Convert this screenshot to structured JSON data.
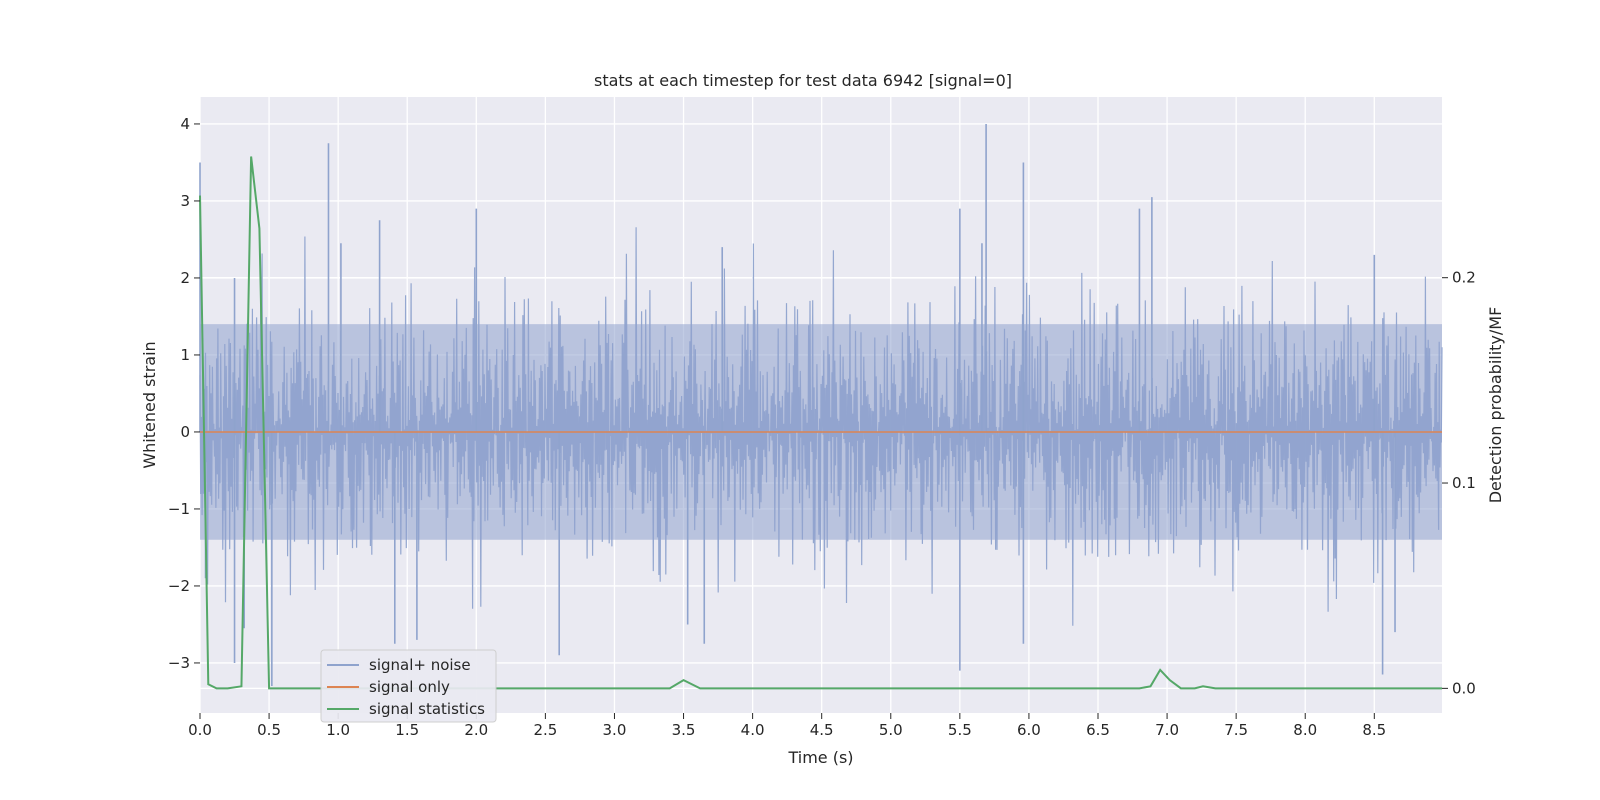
{
  "chart_data": {
    "type": "line",
    "title": "stats at each timestep for test data 6942 [signal=0]",
    "xlabel": "Time (s)",
    "ylabel": "Whitened strain",
    "y2label": "Detection probability/MF",
    "xlim": [
      0.0,
      8.99
    ],
    "ylim": [
      -3.65,
      4.35
    ],
    "y2lim": [
      -0.012,
      0.288
    ],
    "xticks": [
      "0.0",
      "0.5",
      "1.0",
      "1.5",
      "2.0",
      "2.5",
      "3.0",
      "3.5",
      "4.0",
      "4.5",
      "5.0",
      "5.5",
      "6.0",
      "6.5",
      "7.0",
      "7.5",
      "8.0",
      "8.5"
    ],
    "yticks": [
      "−3",
      "−2",
      "−1",
      "0",
      "1",
      "2",
      "3",
      "4"
    ],
    "y2ticks": [
      "0.0",
      "0.1",
      "0.2"
    ],
    "grid": true,
    "legend_position": "lower-left",
    "colors": {
      "noise": "#8fa3cd",
      "signal_only": "#dd8452",
      "signal_statistics": "#55a868",
      "plot_background": "#eaeaf2",
      "grid": "#ffffff"
    },
    "series": [
      {
        "name": "signal+ noise",
        "axis": "left",
        "note_band": [
          -1.4,
          1.4
        ],
        "spikes": [
          {
            "x": 0.0,
            "y": 3.5
          },
          {
            "x": 0.04,
            "y": -1.9
          },
          {
            "x": 0.25,
            "y": 2.0
          },
          {
            "x": 0.25,
            "y": -3.0
          },
          {
            "x": 0.32,
            "y": -2.55
          },
          {
            "x": 0.52,
            "y": -3.3
          },
          {
            "x": 0.93,
            "y": 3.75
          },
          {
            "x": 1.02,
            "y": 2.45
          },
          {
            "x": 1.3,
            "y": 2.75
          },
          {
            "x": 1.41,
            "y": -2.75
          },
          {
            "x": 1.57,
            "y": -2.7
          },
          {
            "x": 2.0,
            "y": 2.9
          },
          {
            "x": 2.6,
            "y": -2.9
          },
          {
            "x": 3.53,
            "y": -2.5
          },
          {
            "x": 3.65,
            "y": -2.75
          },
          {
            "x": 3.78,
            "y": 2.4
          },
          {
            "x": 5.5,
            "y": 2.9
          },
          {
            "x": 5.5,
            "y": -3.1
          },
          {
            "x": 5.66,
            "y": 2.45
          },
          {
            "x": 5.69,
            "y": 4.0
          },
          {
            "x": 5.96,
            "y": 3.5
          },
          {
            "x": 5.96,
            "y": -2.75
          },
          {
            "x": 6.8,
            "y": 2.9
          },
          {
            "x": 6.89,
            "y": 3.05
          },
          {
            "x": 8.5,
            "y": 2.3
          },
          {
            "x": 8.56,
            "y": -3.15
          },
          {
            "x": 8.65,
            "y": -2.6
          }
        ]
      },
      {
        "name": "signal only",
        "axis": "left",
        "x": [
          0.0,
          8.99
        ],
        "y": [
          0.0,
          0.0
        ]
      },
      {
        "name": "signal statistics",
        "axis": "right",
        "x": [
          0.0,
          0.06,
          0.12,
          0.2,
          0.3,
          0.37,
          0.43,
          0.5,
          0.6,
          1.0,
          2.0,
          3.0,
          3.4,
          3.5,
          3.62,
          4.0,
          5.0,
          5.6,
          6.0,
          6.1,
          6.8,
          6.88,
          6.95,
          7.02,
          7.1,
          7.2,
          7.26,
          7.35,
          8.0,
          8.1,
          8.3,
          8.99
        ],
        "y": [
          0.24,
          0.002,
          0.0,
          0.0,
          0.001,
          0.259,
          0.224,
          0.0,
          0.0,
          0.0,
          0.0,
          0.0,
          0.0,
          0.004,
          0.0,
          0.0,
          0.0,
          0.0,
          0.0,
          0.0,
          0.0,
          0.001,
          0.009,
          0.004,
          0.0,
          0.0,
          0.001,
          0.0,
          0.0,
          0.0,
          0.0,
          0.0
        ]
      }
    ]
  }
}
